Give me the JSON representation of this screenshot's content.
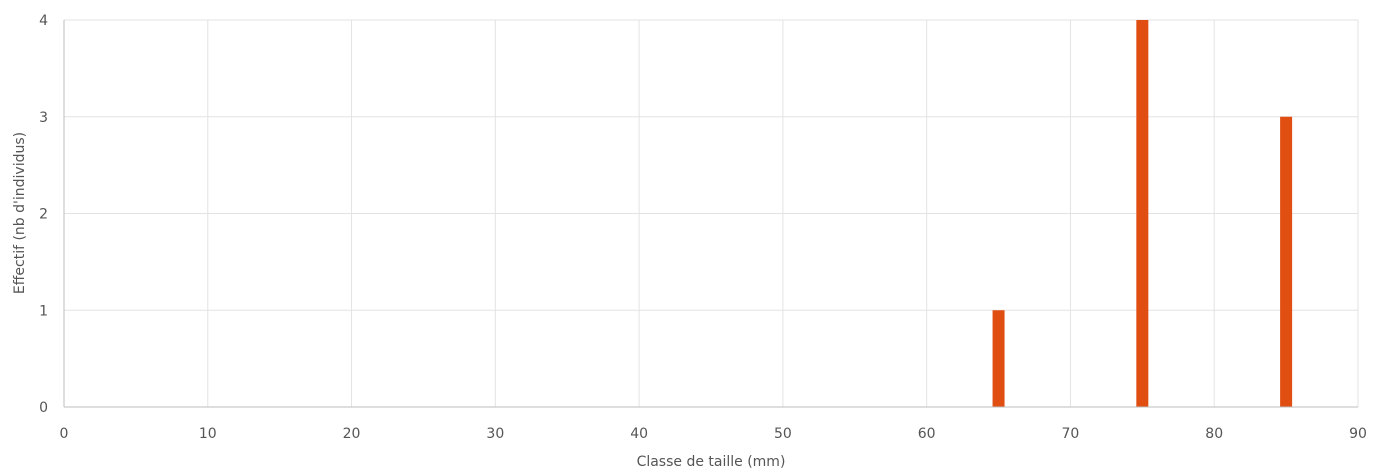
{
  "chart_data": {
    "type": "bar",
    "xlabel": "Classe de taille (mm)",
    "ylabel": "Effectif (nb d'individus)",
    "xlim": [
      0,
      90
    ],
    "ylim": [
      0,
      4
    ],
    "x_ticks": [
      0,
      10,
      20,
      30,
      40,
      50,
      60,
      70,
      80,
      90
    ],
    "y_ticks": [
      0,
      1,
      2,
      3,
      4
    ],
    "x": [
      65,
      75,
      85
    ],
    "values": [
      1,
      4,
      3
    ],
    "bar_color": "#e04e12",
    "grid": true,
    "legend": "none"
  }
}
